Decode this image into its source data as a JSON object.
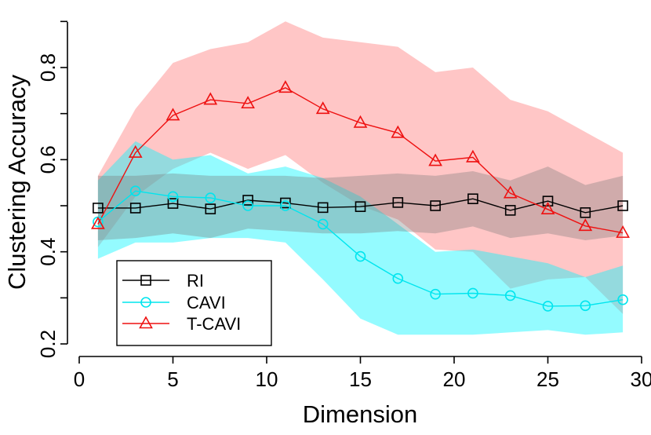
{
  "chart_data": {
    "type": "line",
    "xlabel": "Dimension",
    "ylabel": "Clustering Accuracy",
    "xlim": [
      0,
      30
    ],
    "ylim": [
      0.2,
      0.8
    ],
    "xticks": [
      "0",
      "5",
      "10",
      "15",
      "20",
      "25",
      "30"
    ],
    "yticks": [
      "0.2",
      "0.4",
      "0.6",
      "0.8"
    ],
    "x": [
      1,
      3,
      5,
      7,
      9,
      11,
      13,
      15,
      17,
      19,
      21,
      23,
      25,
      27,
      29
    ],
    "legend_position": "bottom-left",
    "series": [
      {
        "name": "RI",
        "marker": "square",
        "color": "#000000",
        "band_color": "#777777",
        "values": [
          0.495,
          0.495,
          0.505,
          0.493,
          0.512,
          0.506,
          0.496,
          0.498,
          0.507,
          0.5,
          0.515,
          0.49,
          0.51,
          0.485,
          0.5
        ],
        "upper": [
          0.565,
          0.565,
          0.57,
          0.565,
          0.565,
          0.565,
          0.56,
          0.565,
          0.57,
          0.565,
          0.575,
          0.555,
          0.585,
          0.545,
          0.565
        ],
        "lower": [
          0.425,
          0.43,
          0.44,
          0.43,
          0.45,
          0.445,
          0.44,
          0.44,
          0.445,
          0.44,
          0.455,
          0.43,
          0.44,
          0.425,
          0.435
        ]
      },
      {
        "name": "CAVI",
        "marker": "circle",
        "color": "#00e5ee",
        "band_color": "#00f5ff",
        "values": [
          0.465,
          0.532,
          0.52,
          0.517,
          0.5,
          0.5,
          0.46,
          0.39,
          0.342,
          0.308,
          0.31,
          0.305,
          0.282,
          0.283,
          0.296
        ],
        "upper": [
          0.555,
          0.64,
          0.6,
          0.61,
          0.57,
          0.585,
          0.56,
          0.52,
          0.46,
          0.4,
          0.405,
          0.39,
          0.375,
          0.345,
          0.37
        ],
        "lower": [
          0.385,
          0.42,
          0.42,
          0.43,
          0.43,
          0.42,
          0.34,
          0.255,
          0.22,
          0.22,
          0.22,
          0.225,
          0.23,
          0.22,
          0.225
        ]
      },
      {
        "name": "T-CAVI",
        "marker": "triangle",
        "color": "#ee1111",
        "band_color": "#ff7777",
        "values": [
          0.46,
          0.615,
          0.696,
          0.73,
          0.722,
          0.756,
          0.71,
          0.68,
          0.658,
          0.597,
          0.605,
          0.527,
          0.492,
          0.456,
          0.441
        ],
        "upper": [
          0.565,
          0.71,
          0.81,
          0.84,
          0.855,
          0.9,
          0.865,
          0.855,
          0.845,
          0.79,
          0.8,
          0.73,
          0.705,
          0.66,
          0.615
        ],
        "lower": [
          0.41,
          0.52,
          0.58,
          0.615,
          0.58,
          0.61,
          0.55,
          0.5,
          0.47,
          0.405,
          0.4,
          0.32,
          0.34,
          0.345,
          0.265
        ]
      }
    ]
  }
}
